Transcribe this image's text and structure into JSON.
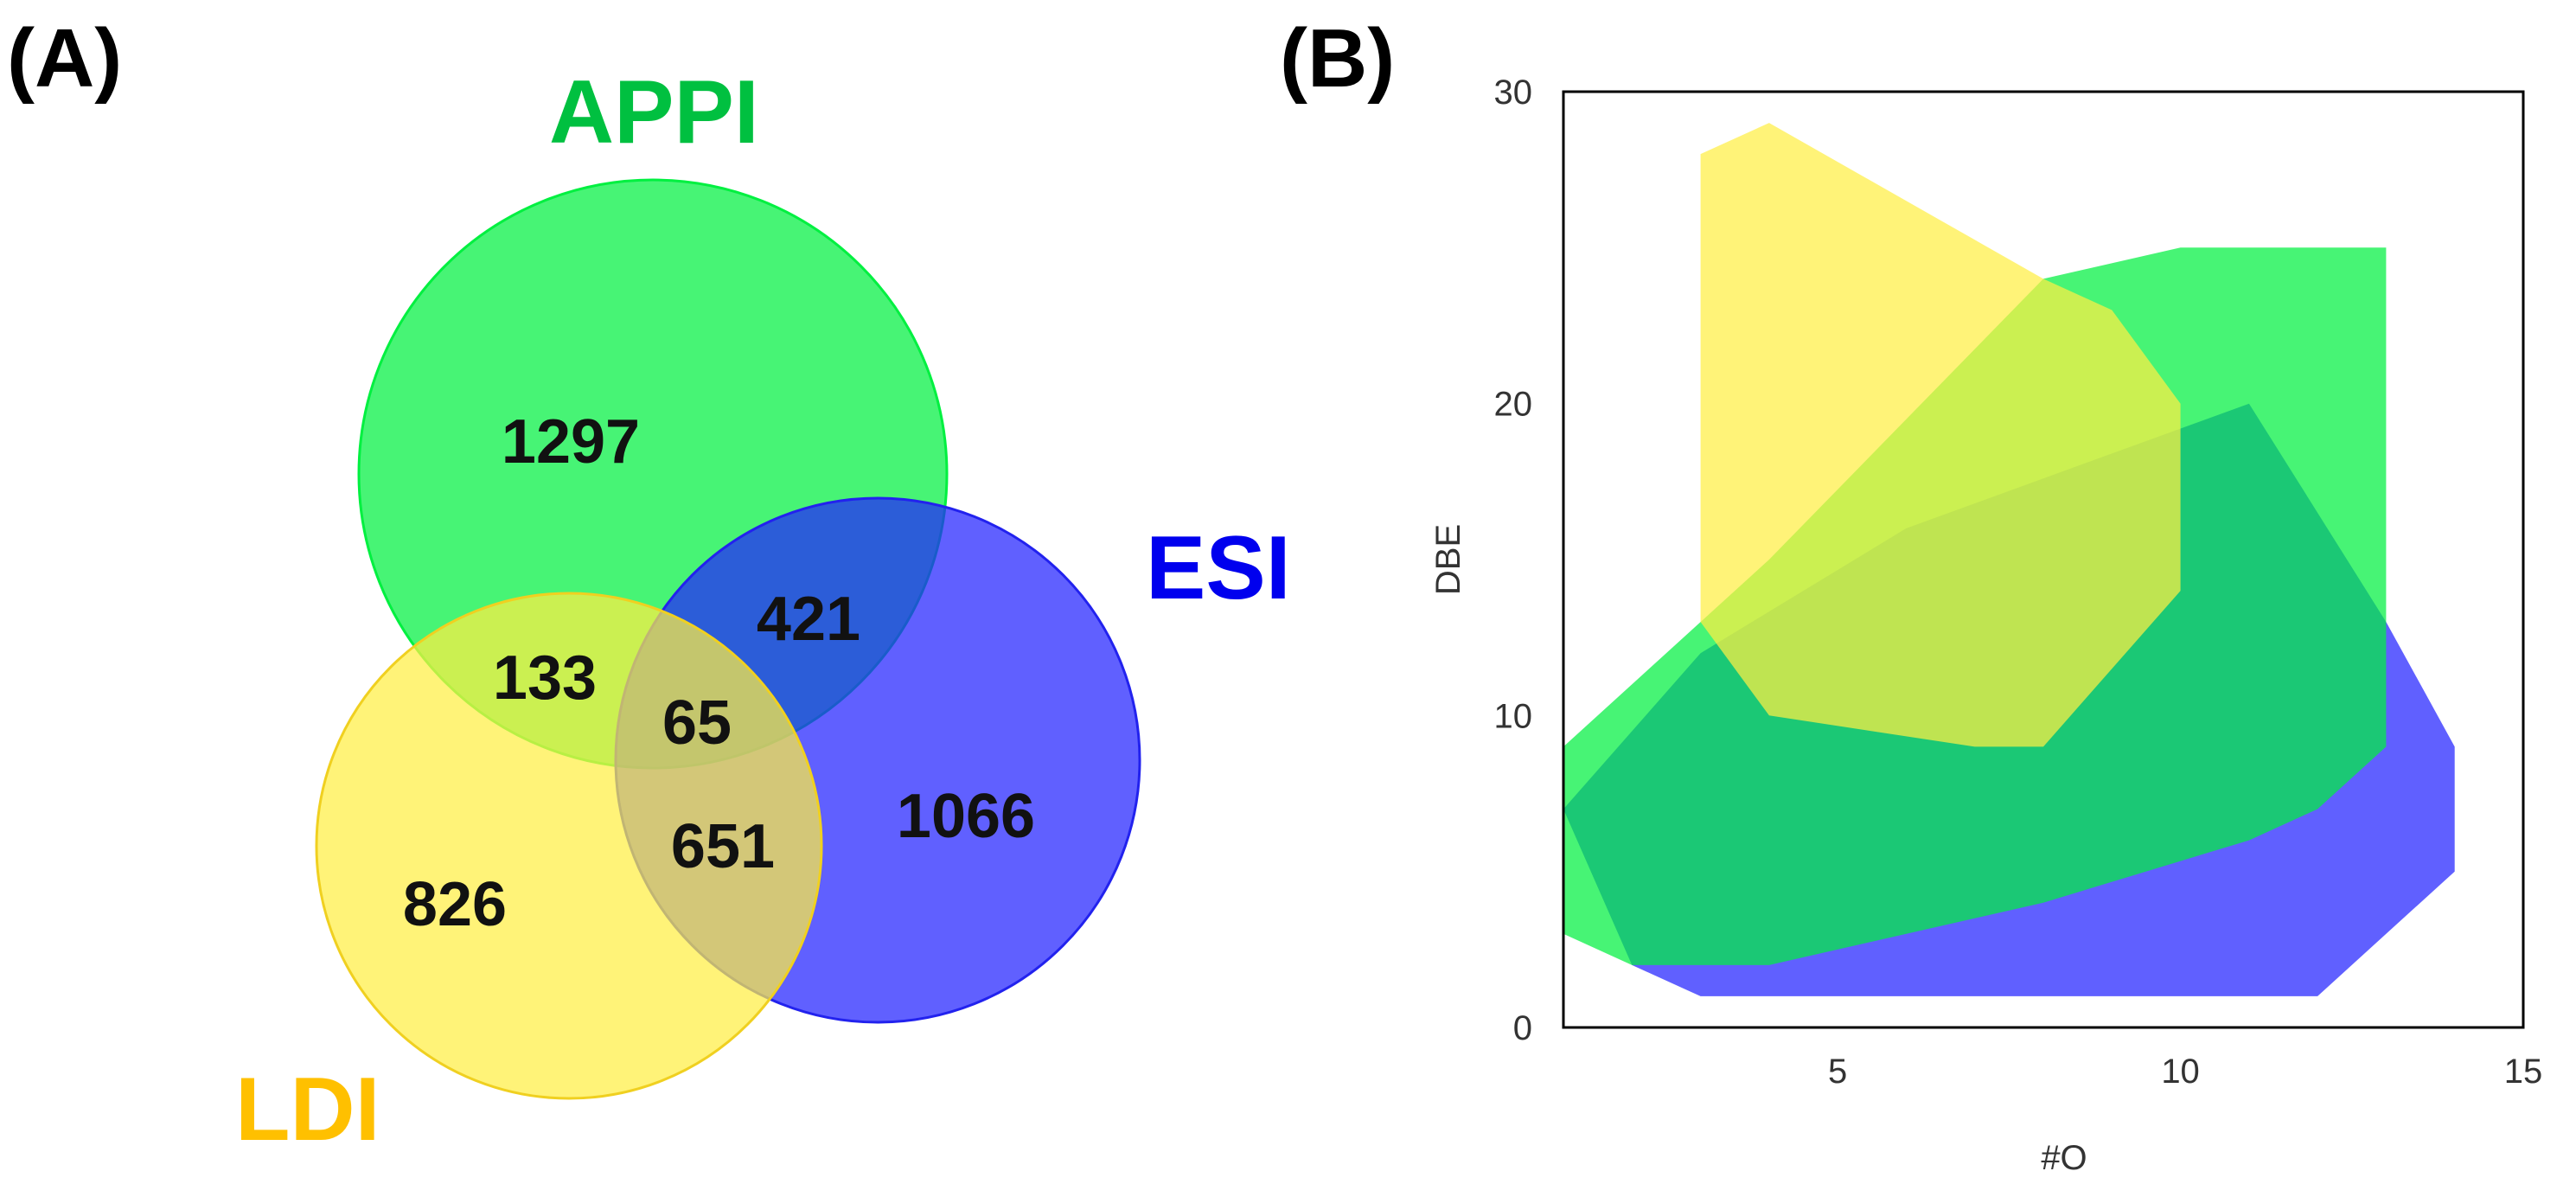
{
  "panel_labels": {
    "a": "(A)",
    "b": "(B)"
  },
  "colors": {
    "appi": "#00f040",
    "esi": "#2222ff",
    "ldi": "#ffee44",
    "appi_label": "#00c040",
    "esi_label": "#0000ee",
    "ldi_label": "#ffc000"
  },
  "chart_data": [
    {
      "type": "venn",
      "title": "(A)",
      "sets": [
        {
          "name": "APPI",
          "color": "#00f040"
        },
        {
          "name": "ESI",
          "color": "#2222ff"
        },
        {
          "name": "LDI",
          "color": "#ffee44"
        }
      ],
      "regions": [
        {
          "sets": [
            "APPI"
          ],
          "value": 1297
        },
        {
          "sets": [
            "APPI",
            "ESI"
          ],
          "value": 421
        },
        {
          "sets": [
            "APPI",
            "LDI"
          ],
          "value": 133
        },
        {
          "sets": [
            "APPI",
            "ESI",
            "LDI"
          ],
          "value": 65
        },
        {
          "sets": [
            "ESI",
            "LDI"
          ],
          "value": 651
        },
        {
          "sets": [
            "ESI"
          ],
          "value": 1066
        },
        {
          "sets": [
            "LDI"
          ],
          "value": 826
        }
      ]
    },
    {
      "type": "area",
      "title": "(B)",
      "xlabel": "#O",
      "ylabel": "DBE",
      "xlim": [
        1,
        15
      ],
      "ylim": [
        0,
        30
      ],
      "xticks": [
        5,
        10,
        15
      ],
      "yticks": [
        0,
        10,
        20,
        30
      ],
      "series": [
        {
          "name": "ESI",
          "color": "#2222ff",
          "points": [
            [
              1,
              7
            ],
            [
              3,
              12
            ],
            [
              6,
              16
            ],
            [
              11,
              20
            ],
            [
              13,
              13
            ],
            [
              14,
              9
            ],
            [
              14,
              5
            ],
            [
              13,
              3
            ],
            [
              12,
              1
            ],
            [
              3,
              1
            ],
            [
              2,
              2
            ],
            [
              1,
              7
            ]
          ]
        },
        {
          "name": "APPI",
          "color": "#00f040",
          "points": [
            [
              1,
              9
            ],
            [
              4,
              15
            ],
            [
              8,
              24
            ],
            [
              10,
              25
            ],
            [
              13,
              25
            ],
            [
              13,
              9
            ],
            [
              12,
              7
            ],
            [
              11,
              6
            ],
            [
              8,
              4
            ],
            [
              4,
              2
            ],
            [
              2,
              2
            ],
            [
              1,
              3
            ]
          ]
        },
        {
          "name": "LDI",
          "color": "#ffee44",
          "points": [
            [
              3,
              28
            ],
            [
              4,
              29
            ],
            [
              8,
              24
            ],
            [
              9,
              23
            ],
            [
              10,
              20
            ],
            [
              10,
              14
            ],
            [
              8,
              9
            ],
            [
              7,
              9
            ],
            [
              4,
              10
            ],
            [
              3,
              13
            ]
          ]
        }
      ]
    }
  ]
}
